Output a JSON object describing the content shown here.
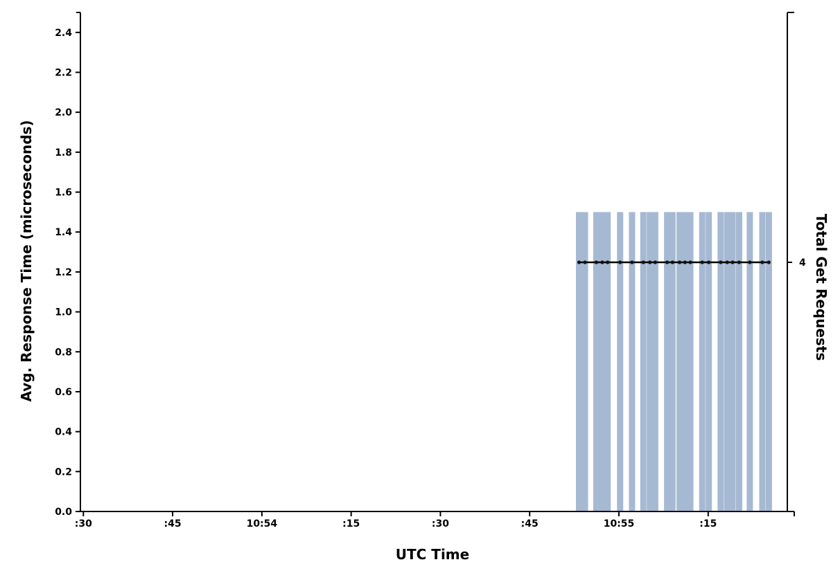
{
  "chart_data": {
    "type": "bar+line",
    "xlabel": "UTC Time",
    "ylabel_left": "Avg. Response Time (microseconds)",
    "ylabel_right": "Total Get Requests",
    "x_tick_labels": [
      ":30",
      ":45",
      "10:54",
      ":15",
      ":30",
      ":45",
      "10:55",
      ":15"
    ],
    "x_tick_seconds": [
      30,
      45,
      60,
      75,
      90,
      105,
      120,
      135
    ],
    "x_range_seconds": [
      29.5,
      148.3
    ],
    "ylim_left": [
      0,
      2.5
    ],
    "y_ticks_left": [
      "0.0",
      "0.2",
      "0.4",
      "0.6",
      "0.8",
      "1.0",
      "1.2",
      "1.4",
      "1.6",
      "1.8",
      "2.0",
      "2.2",
      "2.4"
    ],
    "y_right_ticks": [
      "4"
    ],
    "bars": {
      "series": "Avg. Response Time",
      "color": "#a6b9d3",
      "time_seconds": [
        113.3,
        114.3,
        116.2,
        117.2,
        118.1,
        120.2,
        122.2,
        124.1,
        125.2,
        126.1,
        128.1,
        129.0,
        130.2,
        131.1,
        132.0,
        134.0,
        135.1,
        137.1,
        138.2,
        139.1,
        140.2,
        142.0,
        144.1,
        145.2
      ],
      "values": [
        1.5,
        1.5,
        1.5,
        1.5,
        1.5,
        1.5,
        1.5,
        1.5,
        1.5,
        1.5,
        1.5,
        1.5,
        1.5,
        1.5,
        1.5,
        1.5,
        1.5,
        1.5,
        1.5,
        1.5,
        1.5,
        1.5,
        1.5,
        1.5
      ]
    },
    "line": {
      "series": "Total Get Requests",
      "color": "#000000",
      "time_seconds": [
        113.3,
        114.3,
        116.2,
        117.2,
        118.1,
        120.2,
        122.2,
        124.1,
        125.2,
        126.1,
        128.1,
        129.0,
        130.2,
        131.1,
        132.0,
        134.0,
        135.1,
        137.1,
        138.2,
        139.1,
        140.2,
        142.0,
        144.1,
        145.2
      ],
      "values": [
        4,
        4,
        4,
        4,
        4,
        4,
        4,
        4,
        4,
        4,
        4,
        4,
        4,
        4,
        4,
        4,
        4,
        4,
        4,
        4,
        4,
        4,
        4,
        4
      ]
    }
  }
}
